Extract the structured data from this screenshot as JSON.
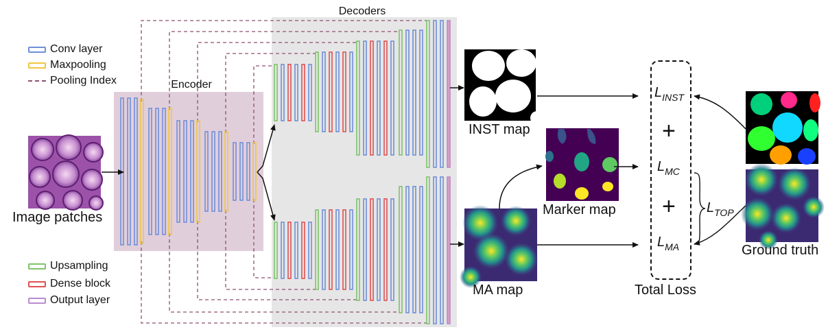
{
  "legend": {
    "conv_layer": "Conv layer",
    "maxpooling": "Maxpooling",
    "pooling_index": "Pooling Index",
    "upsampling": "Upsampling",
    "dense_block": "Dense block",
    "output_layer": "Output layer"
  },
  "labels": {
    "decoders": "Decoders",
    "encoder": "Encoder",
    "image_patches": "Image patches",
    "inst_map": "INST map",
    "marker_map": "Marker map",
    "ma_map": "MA map",
    "total_loss": "Total Loss",
    "ground_truth": "Ground truth"
  },
  "loss": {
    "L": "L",
    "inst_sub": "INST",
    "mc_sub": "MC",
    "ma_sub": "MA",
    "top_sub": "TOP",
    "plus": "+"
  },
  "colors": {
    "conv": "#6f8fd8",
    "maxpool": "#f0c640",
    "pooling_index": "#8e4f72",
    "upsampling": "#7ec46a",
    "dense": "#e05050",
    "output": "#b98bd0",
    "encoder_bg": "#e1cedb",
    "decoder_bg": "#e6e6e6"
  }
}
